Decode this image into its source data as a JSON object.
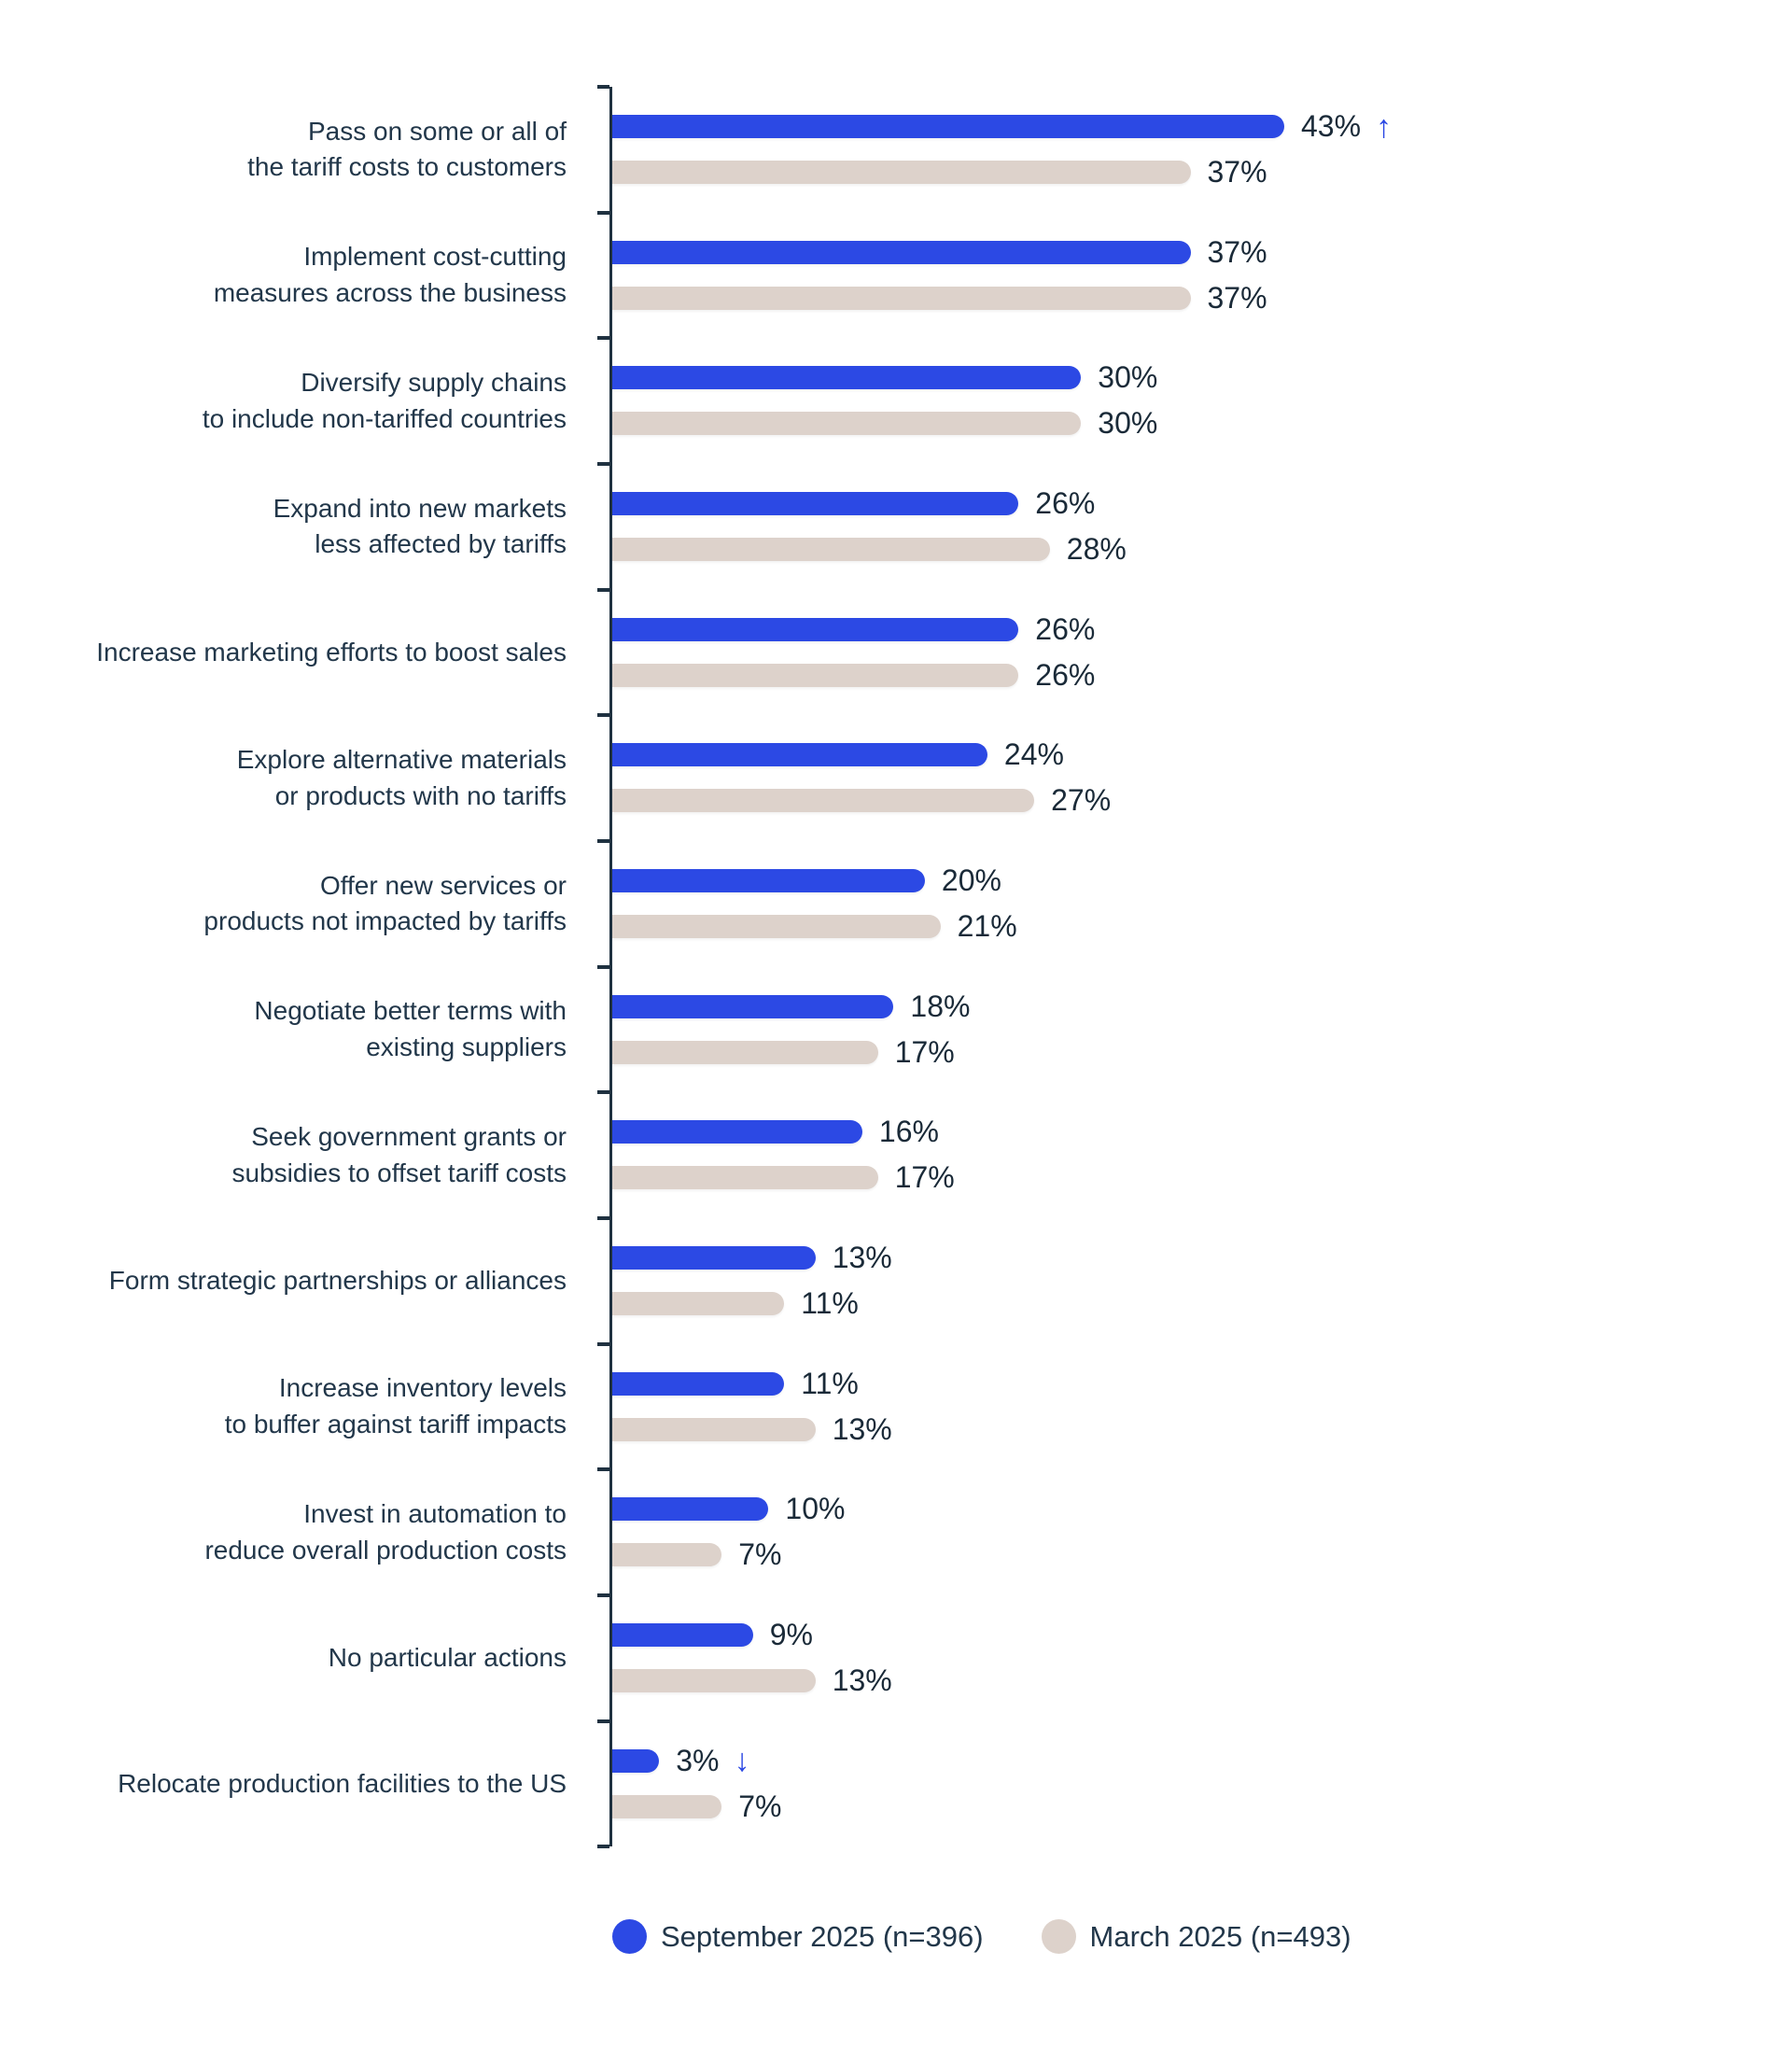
{
  "chart_data": {
    "type": "bar",
    "orientation": "horizontal",
    "unit": "%",
    "grid": false,
    "xlim": [
      0,
      43
    ],
    "value_label_format": "{v}%",
    "legend_position": "bottom",
    "categories": [
      "Pass on some or all of\nthe tariff costs to customers",
      "Implement cost-cutting\nmeasures across the business",
      "Diversify supply chains\nto include non-tariffed countries",
      "Expand into new markets\nless affected by tariffs",
      "Increase marketing efforts to boost sales",
      "Explore alternative materials\nor products with no tariffs",
      "Offer new services or\nproducts not impacted by tariffs",
      "Negotiate better terms with\nexisting suppliers",
      "Seek government grants or\nsubsidies to offset tariff costs",
      "Form strategic partnerships or alliances",
      "Increase inventory levels\nto buffer against tariff impacts",
      "Invest in automation to\nreduce overall production costs",
      "No particular actions",
      "Relocate production facilities to the US"
    ],
    "series": [
      {
        "name": "September 2025 (n=396)",
        "color": "#2c49e4",
        "values": [
          43,
          37,
          30,
          26,
          26,
          24,
          20,
          18,
          16,
          13,
          11,
          10,
          9,
          3
        ]
      },
      {
        "name": "March 2025 (n=493)",
        "color": "#ddd2cb",
        "values": [
          37,
          37,
          30,
          28,
          26,
          27,
          21,
          17,
          17,
          11,
          13,
          7,
          13,
          7
        ]
      }
    ],
    "annotations": [
      {
        "category_index": 0,
        "series": "September 2025 (n=396)",
        "symbol": "↑",
        "icon": "up-arrow-icon",
        "meaning": "increase vs prior wave"
      },
      {
        "category_index": 13,
        "series": "September 2025 (n=396)",
        "symbol": "↓",
        "icon": "down-arrow-icon",
        "meaning": "decrease vs prior wave"
      }
    ]
  },
  "legend": {
    "items": [
      {
        "label": "September 2025 (n=396)",
        "color": "#2c49e4"
      },
      {
        "label": "March 2025 (n=493)",
        "color": "#ddd2cb"
      }
    ]
  },
  "colors": {
    "september_bar": "#2c49e4",
    "march_bar": "#ddd2cb",
    "axis": "#1f3140",
    "category_text": "#22374a",
    "value_text": "#1a2a38",
    "trend_arrow": "#2c49e4",
    "background": "#ffffff"
  }
}
